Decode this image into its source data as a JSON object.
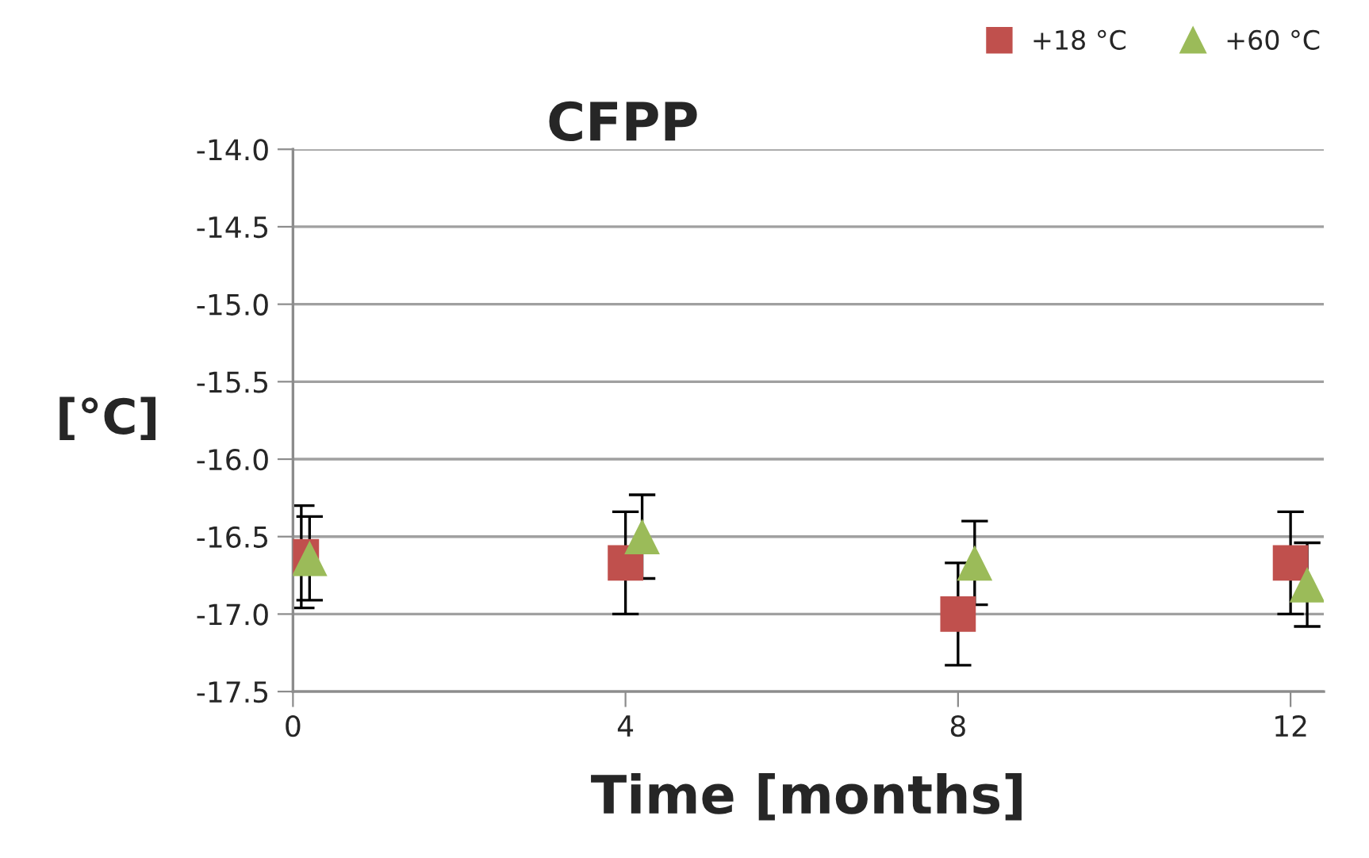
{
  "chart_data": {
    "type": "scatter",
    "title": "CFPP",
    "xlabel": "Time [months]",
    "ylabel": "[°C]",
    "xlim": [
      0,
      12.4
    ],
    "xticks": [
      0,
      4,
      8,
      12
    ],
    "ylim": [
      -17.5,
      -14.0
    ],
    "yticks": [
      {
        "value": -17.5,
        "label": "-17.5"
      },
      {
        "value": -17.0,
        "label": "-17.0"
      },
      {
        "value": -16.5,
        "label": "-16.5"
      },
      {
        "value": -16.0,
        "label": "-16.0"
      },
      {
        "value": -15.5,
        "label": "-15.5"
      },
      {
        "value": -15.0,
        "label": "-15.0"
      },
      {
        "value": -14.5,
        "label": "-14.5"
      },
      {
        "value": -14.0,
        "label": "-14.0"
      }
    ],
    "grid": "y",
    "legend": "top right",
    "series": [
      {
        "name": "+18 °C",
        "color": "#c0504d",
        "marker": "square",
        "x": [
          0.1,
          4,
          8,
          12
        ],
        "values": [
          -16.63,
          -16.67,
          -17.0,
          -16.67
        ],
        "errors": [
          0.33,
          0.33,
          0.33,
          0.33
        ]
      },
      {
        "name": "+60 °C",
        "color": "#9bbb59",
        "marker": "triangle",
        "x": [
          0.2,
          4.2,
          8.2,
          12.2
        ],
        "values": [
          -16.64,
          -16.5,
          -16.67,
          -16.81
        ],
        "errors": [
          0.27,
          0.27,
          0.27,
          0.27
        ]
      }
    ]
  }
}
